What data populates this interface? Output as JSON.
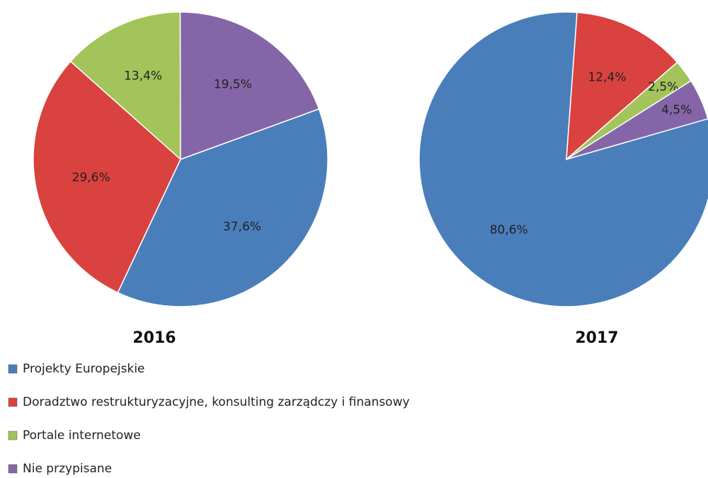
{
  "chart_data": [
    {
      "type": "pie",
      "title": "2016",
      "categories": [
        "Projekty Europejskie",
        "Doradztwo restrukturyzacyjne, konsulting zarządczy i finansowy",
        "Portale internetowe",
        "Nie przypisane"
      ],
      "values": [
        37.6,
        29.6,
        13.4,
        19.5
      ],
      "value_labels": [
        "37,6%",
        "29,6%",
        "13,4%",
        "19,5%"
      ],
      "colors": [
        "#4a7ebb",
        "#d9423f",
        "#a2c45a",
        "#8466a8"
      ]
    },
    {
      "type": "pie",
      "title": "2017",
      "categories": [
        "Projekty Europejskie",
        "Doradztwo restrukturyzacyjne, konsulting zarządczy i finansowy",
        "Portale internetowe",
        "Nie przypisane"
      ],
      "values": [
        80.6,
        12.4,
        2.5,
        4.5
      ],
      "value_labels": [
        "80,6%",
        "12,4%",
        "2,5%",
        "4,5%"
      ],
      "colors": [
        "#4a7ebb",
        "#d9423f",
        "#a2c45a",
        "#8466a8"
      ]
    }
  ]
}
